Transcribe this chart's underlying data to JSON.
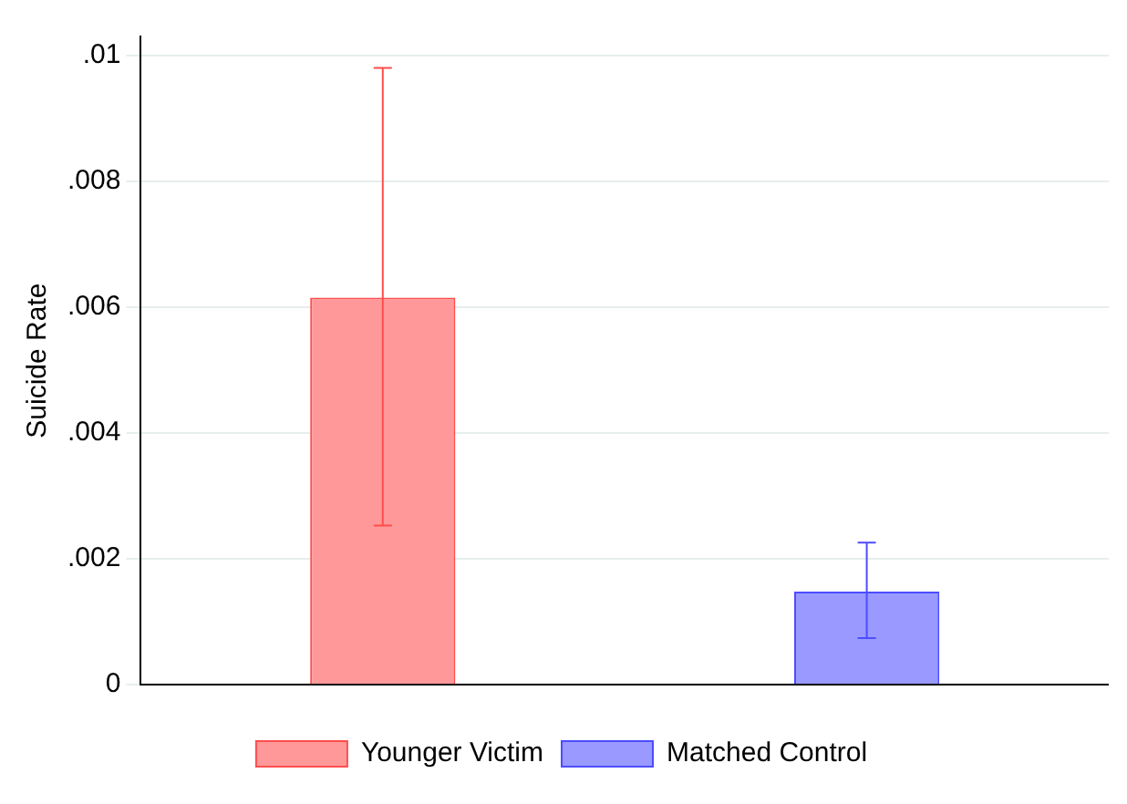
{
  "chart_data": {
    "type": "bar",
    "ylabel": "Suicide Rate",
    "categories": [
      null,
      null
    ],
    "series": [
      {
        "name": "Younger Victim",
        "color": "#ff9999",
        "values": [
          0.00615,
          null
        ],
        "errors": [
          [
            0.00253,
            0.0098
          ],
          null
        ]
      },
      {
        "name": "Matched Control",
        "color": "#9999ff",
        "values": [
          null,
          0.00148
        ],
        "errors": [
          null,
          [
            0.00074,
            0.00226
          ]
        ]
      }
    ],
    "ylim": [
      0,
      0.0103
    ],
    "yticks": [
      0,
      {
        "value": 0.002,
        "label": ".002"
      },
      {
        "value": 0.004,
        "label": ".004"
      },
      {
        "value": 0.006,
        "label": ".006"
      },
      {
        "value": 0.008,
        "label": ".008"
      },
      {
        "value": 0.01,
        "label": ".01"
      }
    ],
    "grid": "y",
    "legend": "bottom"
  }
}
